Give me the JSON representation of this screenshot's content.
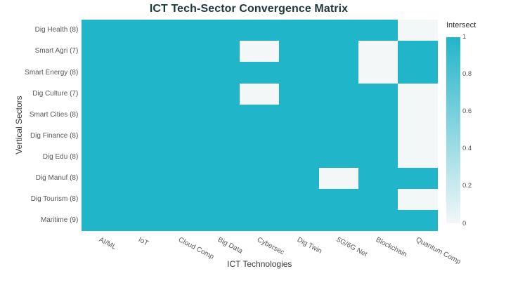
{
  "chart_data": {
    "type": "heatmap",
    "title": "ICT Tech-Sector Convergence Matrix",
    "xlabel": "ICT Technologies",
    "ylabel": "Vertical Sectors",
    "columns": [
      "AI/ML",
      "IoT",
      "Cloud Comp",
      "Big Data",
      "Cybersec",
      "Dig Twin",
      "5G/6G Net",
      "Blockchain",
      "Quantum Comp"
    ],
    "rows": [
      "Dig Health (8)",
      "Smart Agri (7)",
      "Smart Energy (8)",
      "Dig Culture (7)",
      "Smart Cities (8)",
      "Dig Finance (8)",
      "Dig Edu (8)",
      "Dig Manuf (8)",
      "Dig Tourism (8)",
      "Maritime (9)"
    ],
    "values": [
      [
        1,
        1,
        1,
        1,
        1,
        1,
        1,
        1,
        0
      ],
      [
        1,
        1,
        1,
        1,
        0,
        1,
        1,
        0,
        1
      ],
      [
        1,
        1,
        1,
        1,
        1,
        1,
        1,
        0,
        1
      ],
      [
        1,
        1,
        1,
        1,
        0,
        1,
        1,
        1,
        0
      ],
      [
        1,
        1,
        1,
        1,
        1,
        1,
        1,
        1,
        0
      ],
      [
        1,
        1,
        1,
        1,
        1,
        1,
        1,
        1,
        0
      ],
      [
        1,
        1,
        1,
        1,
        1,
        1,
        1,
        1,
        0
      ],
      [
        1,
        1,
        1,
        1,
        1,
        1,
        0,
        1,
        1
      ],
      [
        1,
        1,
        1,
        1,
        1,
        1,
        1,
        1,
        0
      ],
      [
        1,
        1,
        1,
        1,
        1,
        1,
        1,
        1,
        1
      ]
    ],
    "colorbar": {
      "label": "Intersect",
      "ticks": [
        "1",
        "0.8",
        "0.6",
        "0.4",
        "0.2",
        "0"
      ],
      "vmin": 0,
      "vmax": 1
    },
    "colors": {
      "high": "#21b5c9",
      "low": "#f3f7f8",
      "title_text": "#1e373c",
      "tick_text": "#54595c",
      "axis_text": "#37393b",
      "cbar_label_text": "#2b2e30"
    },
    "legend_position": "right",
    "grid": false
  }
}
